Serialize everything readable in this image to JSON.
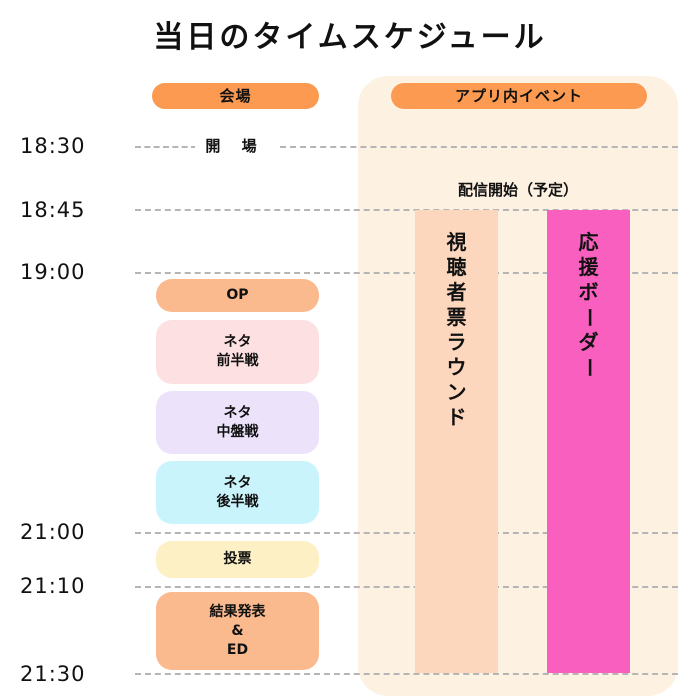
{
  "title": "当日のタイムスケジュール",
  "headers": {
    "venue": "会場",
    "app_events": "アプリ内イベント"
  },
  "times": [
    "18:30",
    "18:45",
    "19:00",
    "21:00",
    "21:10",
    "21:30"
  ],
  "venue_open": "開 場",
  "stream_start": "配信開始（予定）",
  "venue_segments": [
    {
      "line1": "OP",
      "line2": "",
      "line3": "",
      "color": "#fbb98e"
    },
    {
      "line1": "ネタ",
      "line2": "前半戦",
      "line3": "",
      "color": "#fde0e2"
    },
    {
      "line1": "ネタ",
      "line2": "中盤戦",
      "line3": "",
      "color": "#ece3fb"
    },
    {
      "line1": "ネタ",
      "line2": "後半戦",
      "line3": "",
      "color": "#c9f4fb"
    },
    {
      "line1": "投票",
      "line2": "",
      "line3": "",
      "color": "#fdf0c4"
    },
    {
      "line1": "結果発表",
      "line2": "&",
      "line3": "ED",
      "color": "#fbb98e"
    }
  ],
  "app_events": [
    {
      "name": "視聴者票ラウンド",
      "color": "#fdd7bd"
    },
    {
      "name": "応援ボーダー",
      "color": "#f95fbf"
    }
  ],
  "colors": {
    "header_pill": "#fb9a50",
    "event_panel": "#fdf1e2",
    "gridline": "#b5b5b5"
  }
}
